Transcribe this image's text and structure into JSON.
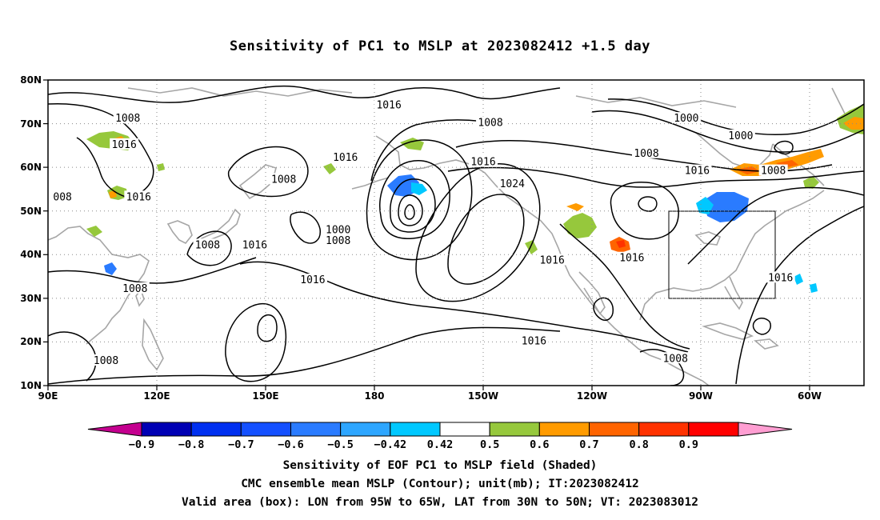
{
  "figure": {
    "title": "Sensitivity of PC1 to MSLP at 2023082412 +1.5 day"
  },
  "map": {
    "lat_labels": [
      "80N",
      "70N",
      "60N",
      "50N",
      "40N",
      "30N",
      "20N",
      "10N"
    ],
    "lon_labels": [
      "90E",
      "120E",
      "150E",
      "180",
      "150W",
      "120W",
      "90W",
      "60W"
    ],
    "lat_range": [
      10,
      80
    ],
    "lon_range": [
      90,
      315
    ],
    "grid": "dotted",
    "coastline_color": "#a0a0a0"
  },
  "contours": {
    "color": "#000000",
    "labels": [
      {
        "text": "1016",
        "lon": -176,
        "lat": 74
      },
      {
        "text": "1008",
        "lon": 112,
        "lat": 71
      },
      {
        "text": "1016",
        "lon": 111,
        "lat": 65
      },
      {
        "text": "1008",
        "lon": -148,
        "lat": 70
      },
      {
        "text": "1000",
        "lon": -94,
        "lat": 71
      },
      {
        "text": "1000",
        "lon": -79,
        "lat": 67
      },
      {
        "text": "1008",
        "lon": -105,
        "lat": 63
      },
      {
        "text": "1016",
        "lon": 172,
        "lat": 62
      },
      {
        "text": "1016",
        "lon": -150,
        "lat": 61
      },
      {
        "text": "1016",
        "lon": -91,
        "lat": 59
      },
      {
        "text": "1008",
        "lon": -70,
        "lat": 59
      },
      {
        "text": "1008",
        "lon": 155,
        "lat": 57
      },
      {
        "text": "1024",
        "lon": -142,
        "lat": 56
      },
      {
        "text": "008",
        "lon": 94,
        "lat": 53
      },
      {
        "text": "1016",
        "lon": 115,
        "lat": 53
      },
      {
        "text": "1000",
        "lon": 170,
        "lat": 45.5
      },
      {
        "text": "1008",
        "lon": 170,
        "lat": 43
      },
      {
        "text": "1008",
        "lon": 134,
        "lat": 42
      },
      {
        "text": "1016",
        "lon": 147,
        "lat": 42
      },
      {
        "text": "1016",
        "lon": -131,
        "lat": 38.5
      },
      {
        "text": "1016",
        "lon": -109,
        "lat": 39
      },
      {
        "text": "1016",
        "lon": -68,
        "lat": 34.5
      },
      {
        "text": "1016",
        "lon": 163,
        "lat": 34
      },
      {
        "text": "1008",
        "lon": 114,
        "lat": 32
      },
      {
        "text": "1016",
        "lon": -136,
        "lat": 20
      },
      {
        "text": "1008",
        "lon": 106,
        "lat": 15.5
      },
      {
        "text": "1008",
        "lon": -97,
        "lat": 16
      }
    ]
  },
  "shading": {
    "levels": [
      -0.9,
      -0.8,
      -0.7,
      -0.6,
      -0.5,
      -0.42,
      0.42,
      0.5,
      0.6,
      0.7,
      0.8,
      0.9
    ],
    "level_labels": [
      "−0.9",
      "−0.8",
      "−0.7",
      "−0.6",
      "−0.5",
      "−0.42",
      "0.42",
      "0.5",
      "0.6",
      "0.7",
      "0.8",
      "0.9"
    ],
    "colors": [
      "#c4008f",
      "#0000b4",
      "#0030f0",
      "#1450ff",
      "#2a7bff",
      "#2ea6ff",
      "#00c8ff",
      "#ffffff",
      "#96c83c",
      "#ff9b00",
      "#ff6400",
      "#ff3200",
      "#ff0000",
      "#ff9ed2"
    ]
  },
  "valid_box": {
    "lon": [
      "95W",
      "65W"
    ],
    "lat": [
      "30N",
      "50N"
    ]
  },
  "footer": {
    "line1": "Sensitivity of EOF PC1 to MSLP field (Shaded)",
    "line2": "CMC ensemble mean MSLP (Contour); unit(mb); IT:2023082412",
    "line3": "Valid area (box): LON from 95W to 65W, LAT from 30N to 50N; VT: 2023083012"
  }
}
